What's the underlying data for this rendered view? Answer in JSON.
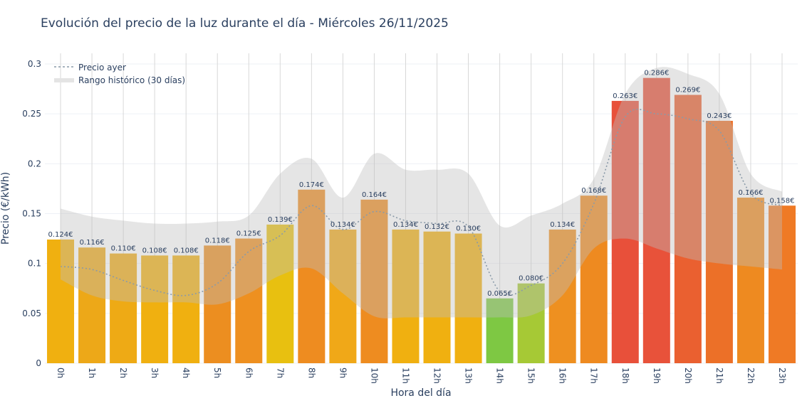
{
  "chart_data": {
    "type": "bar",
    "title": "Evolución del precio de la luz durante el día - Miércoles 26/11/2025",
    "xlabel": "Hora del día",
    "ylabel": "Precio (€/kWh)",
    "ylim": [
      0,
      0.31
    ],
    "yticks": [
      "0",
      "0.05",
      "0.1",
      "0.15",
      "0.2",
      "0.25",
      "0.3"
    ],
    "ytick_values": [
      0,
      0.05,
      0.1,
      0.15,
      0.2,
      0.25,
      0.3
    ],
    "grid": true,
    "legend_position": "top-left",
    "categories": [
      "0h",
      "1h",
      "2h",
      "3h",
      "4h",
      "5h",
      "6h",
      "7h",
      "8h",
      "9h",
      "10h",
      "11h",
      "12h",
      "13h",
      "14h",
      "15h",
      "16h",
      "17h",
      "18h",
      "19h",
      "20h",
      "21h",
      "22h",
      "23h"
    ],
    "values": [
      0.124,
      0.116,
      0.11,
      0.108,
      0.108,
      0.118,
      0.125,
      0.139,
      0.174,
      0.134,
      0.164,
      0.134,
      0.132,
      0.13,
      0.065,
      0.08,
      0.134,
      0.168,
      0.263,
      0.286,
      0.269,
      0.243,
      0.166,
      0.158
    ],
    "labels": [
      "0.124€",
      "0.116€",
      "0.110€",
      "0.108€",
      "0.108€",
      "0.118€",
      "0.125€",
      "0.139€",
      "0.174€",
      "0.134€",
      "0.164€",
      "0.134€",
      "0.132€",
      "0.130€",
      "0.065€",
      "0.080€",
      "0.134€",
      "0.168€",
      "0.263€",
      "0.286€",
      "0.269€",
      "0.243€",
      "0.166€",
      "0.158€"
    ],
    "bar_colors": [
      "#f0b010",
      "#eda818",
      "#eeaa15",
      "#f0b010",
      "#f0b010",
      "#ec8e20",
      "#ee9020",
      "#e8c010",
      "#ee8c20",
      "#f0a818",
      "#ee8c20",
      "#f0b010",
      "#f0b010",
      "#f0b010",
      "#7ec843",
      "#a6c935",
      "#ee9020",
      "#ee8a20",
      "#e8503a",
      "#e8523a",
      "#ea6030",
      "#ec7028",
      "#ee8a20",
      "#ef7a25"
    ],
    "series": [
      {
        "name": "Precio ayer",
        "style": "dotted",
        "color": "#8a9aa8",
        "values": [
          0.097,
          0.094,
          0.083,
          0.073,
          0.068,
          0.08,
          0.112,
          0.128,
          0.158,
          0.134,
          0.152,
          0.143,
          0.14,
          0.137,
          0.072,
          0.078,
          0.1,
          0.16,
          0.247,
          0.25,
          0.245,
          0.233,
          0.17,
          0.158
        ]
      },
      {
        "name": "Rango histórico (30 días)",
        "style": "band",
        "color": "#d0d0d0",
        "upper": [
          0.155,
          0.147,
          0.143,
          0.14,
          0.14,
          0.142,
          0.148,
          0.19,
          0.205,
          0.166,
          0.21,
          0.194,
          0.194,
          0.19,
          0.138,
          0.148,
          0.16,
          0.185,
          0.27,
          0.296,
          0.29,
          0.27,
          0.19,
          0.172
        ],
        "lower": [
          0.084,
          0.068,
          0.062,
          0.061,
          0.061,
          0.059,
          0.07,
          0.088,
          0.095,
          0.07,
          0.047,
          0.046,
          0.046,
          0.046,
          0.046,
          0.048,
          0.068,
          0.115,
          0.125,
          0.115,
          0.105,
          0.1,
          0.097,
          0.094
        ]
      }
    ]
  }
}
